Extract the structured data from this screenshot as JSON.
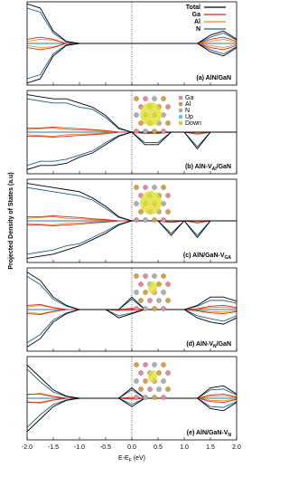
{
  "chart_data": [
    {
      "type": "line",
      "label": [
        "(a) AlN/GaN"
      ],
      "xlim": [
        -2,
        2
      ],
      "ylim": [
        -1,
        1
      ],
      "vline": 0,
      "x": [
        -2,
        -1.75,
        -1.5,
        -1.25,
        -1,
        -0.75,
        -0.5,
        -0.25,
        0,
        0.25,
        0.5,
        0.75,
        1,
        1.25,
        1.5,
        1.75,
        2
      ],
      "series": [
        {
          "name": "Total",
          "color": "#000000",
          "values": [
            0.95,
            0.85,
            0.3,
            0.05,
            0,
            0,
            0,
            0,
            0,
            0,
            0,
            0,
            0,
            0,
            0.2,
            0.3,
            0.1
          ],
          "down": [
            -0.95,
            -0.85,
            -0.3,
            -0.05,
            0,
            0,
            0,
            0,
            0,
            0,
            0,
            0,
            0,
            0,
            -0.2,
            -0.3,
            -0.1
          ]
        },
        {
          "name": "Ga",
          "color": "#d62728",
          "values": [
            0.1,
            0.15,
            0.1,
            0,
            0,
            0,
            0,
            0,
            0,
            0,
            0,
            0,
            0,
            0,
            0.1,
            0.15,
            0.05
          ],
          "down": [
            -0.1,
            -0.15,
            -0.1,
            0,
            0,
            0,
            0,
            0,
            0,
            0,
            0,
            0,
            0,
            0,
            -0.1,
            -0.15,
            -0.05
          ]
        },
        {
          "name": "Al",
          "color": "#f08c1e",
          "values": [
            0.05,
            0.1,
            0.08,
            0,
            0,
            0,
            0,
            0,
            0,
            0,
            0,
            0,
            0,
            0,
            0.05,
            0.1,
            0.02
          ],
          "down": [
            -0.05,
            -0.1,
            -0.08,
            0,
            0,
            0,
            0,
            0,
            0,
            0,
            0,
            0,
            0,
            0,
            -0.05,
            -0.1,
            -0.02
          ]
        },
        {
          "name": "N",
          "color": "#1f5f8b",
          "values": [
            0.85,
            0.75,
            0.25,
            0.03,
            0,
            0,
            0,
            0,
            0,
            0,
            0,
            0,
            0,
            0,
            0.15,
            0.25,
            0.08
          ],
          "down": [
            -0.85,
            -0.75,
            -0.25,
            -0.03,
            0,
            0,
            0,
            0,
            0,
            0,
            0,
            0,
            0,
            0,
            -0.15,
            -0.25,
            -0.08
          ]
        }
      ]
    },
    {
      "type": "line",
      "label": [
        "(b) AlN-V",
        "Al",
        "/GaN"
      ],
      "xlim": [
        -2,
        2
      ],
      "ylim": [
        -1,
        1
      ],
      "vline": 0,
      "inset_legend": [
        "Ga",
        "Al",
        "N",
        "Up",
        "Down"
      ],
      "x": [
        -2,
        -1.75,
        -1.5,
        -1.25,
        -1,
        -0.75,
        -0.5,
        -0.25,
        0,
        0.25,
        0.5,
        0.75,
        1,
        1.25,
        1.5,
        1.75,
        2
      ],
      "series": [
        {
          "color": "#000000",
          "values": [
            0.9,
            0.85,
            0.8,
            0.8,
            0.7,
            0.6,
            0.4,
            0.1,
            0,
            0,
            0,
            0,
            0,
            0,
            0,
            0,
            0
          ],
          "down": [
            -0.9,
            -0.8,
            -0.8,
            -0.75,
            -0.6,
            -0.5,
            -0.3,
            -0.1,
            0,
            -0.3,
            -0.3,
            0,
            0,
            -0.4,
            0,
            0,
            0
          ]
        },
        {
          "color": "#d62728",
          "values": [
            0.1,
            0.1,
            0.12,
            0.1,
            0.08,
            0.06,
            0.04,
            0,
            0,
            0,
            0,
            0,
            0,
            0,
            0,
            0,
            0
          ],
          "down": [
            -0.1,
            -0.1,
            -0.12,
            -0.1,
            -0.08,
            -0.06,
            -0.04,
            0,
            0,
            -0.03,
            -0.03,
            0,
            0,
            -0.05,
            0,
            0,
            0
          ]
        },
        {
          "color": "#f08c1e",
          "values": [
            0.06,
            0.08,
            0.1,
            0.06,
            0.05,
            0.04,
            0.02,
            0,
            0,
            0,
            0,
            0,
            0,
            0,
            0,
            0,
            0
          ],
          "down": [
            -0.06,
            -0.08,
            -0.1,
            -0.06,
            -0.05,
            -0.04,
            -0.02,
            0,
            0,
            -0.02,
            -0.02,
            0,
            0,
            -0.03,
            0,
            0,
            0
          ]
        },
        {
          "color": "#1f5f8b",
          "values": [
            0.8,
            0.75,
            0.7,
            0.7,
            0.6,
            0.55,
            0.35,
            0.08,
            0,
            0,
            0,
            0,
            0,
            0,
            0,
            0,
            0
          ],
          "down": [
            -0.8,
            -0.7,
            -0.7,
            -0.65,
            -0.55,
            -0.45,
            -0.25,
            -0.08,
            0,
            -0.25,
            -0.25,
            0,
            0,
            -0.35,
            0,
            0,
            0
          ]
        }
      ]
    },
    {
      "type": "line",
      "label": [
        "(c) AlN/GaN-V",
        "GA"
      ],
      "xlim": [
        -2,
        2
      ],
      "ylim": [
        -1,
        1
      ],
      "vline": 0,
      "ylabel": "Projected Density of States (a.u)",
      "x": [
        -2,
        -1.75,
        -1.5,
        -1.25,
        -1,
        -0.75,
        -0.5,
        -0.25,
        0,
        0.25,
        0.5,
        0.75,
        1,
        1.25,
        1.5,
        1.75,
        2
      ],
      "series": [
        {
          "color": "#000000",
          "values": [
            0.9,
            0.85,
            0.8,
            0.75,
            0.7,
            0.55,
            0.35,
            0.1,
            0,
            0,
            0,
            0,
            0,
            0,
            0,
            0,
            0
          ],
          "down": [
            -0.9,
            -0.85,
            -0.8,
            -0.7,
            -0.6,
            -0.45,
            -0.3,
            -0.1,
            0,
            0,
            0,
            -0.35,
            0,
            -0.4,
            0,
            0,
            0
          ]
        },
        {
          "color": "#d62728",
          "values": [
            0.1,
            0.1,
            0.12,
            0.1,
            0.08,
            0.05,
            0.03,
            0,
            0,
            0,
            0,
            0,
            0,
            0,
            0,
            0,
            0
          ],
          "down": [
            -0.1,
            -0.1,
            -0.12,
            -0.1,
            -0.08,
            -0.05,
            -0.03,
            0,
            0,
            0,
            0,
            -0.04,
            0,
            -0.05,
            0,
            0,
            0
          ]
        },
        {
          "color": "#f08c1e",
          "values": [
            0.06,
            0.08,
            0.1,
            0.06,
            0.05,
            0.03,
            0.02,
            0,
            0,
            0,
            0,
            0,
            0,
            0,
            0,
            0,
            0
          ],
          "down": [
            -0.06,
            -0.08,
            -0.1,
            -0.06,
            -0.05,
            -0.03,
            -0.02,
            0,
            0,
            0,
            0,
            -0.03,
            0,
            -0.03,
            0,
            0,
            0
          ]
        },
        {
          "color": "#1f5f8b",
          "values": [
            0.8,
            0.75,
            0.7,
            0.65,
            0.6,
            0.5,
            0.3,
            0.08,
            0,
            0,
            0,
            0,
            0,
            0,
            0,
            0,
            0
          ],
          "down": [
            -0.8,
            -0.75,
            -0.7,
            -0.6,
            -0.55,
            -0.4,
            -0.25,
            -0.08,
            0,
            0,
            0,
            -0.3,
            0,
            -0.35,
            0,
            0,
            0
          ]
        }
      ]
    },
    {
      "type": "line",
      "label": [
        "(d) AlN-V",
        "N",
        "/GaN"
      ],
      "xlim": [
        -2,
        2
      ],
      "ylim": [
        -1,
        1
      ],
      "vline": 0,
      "x": [
        -2,
        -1.75,
        -1.5,
        -1.25,
        -1,
        -0.75,
        -0.5,
        -0.25,
        0,
        0.25,
        0.5,
        0.75,
        1,
        1.25,
        1.5,
        1.75,
        2
      ],
      "series": [
        {
          "color": "#000000",
          "values": [
            0.9,
            0.7,
            0.3,
            0.1,
            0,
            0,
            0,
            0,
            0.3,
            0,
            0,
            0,
            0,
            0.1,
            0.3,
            0.3,
            0.2
          ],
          "down": [
            -0.9,
            -0.7,
            -0.3,
            -0.1,
            0,
            0,
            0,
            -0.2,
            -0.1,
            0,
            0,
            0,
            0,
            -0.2,
            -0.3,
            -0.35,
            -0.2
          ]
        },
        {
          "color": "#d62728",
          "values": [
            0.1,
            0.12,
            0.05,
            0,
            0,
            0,
            0,
            0,
            0.03,
            0,
            0,
            0,
            0,
            0.02,
            0.08,
            0.1,
            0.05
          ],
          "down": [
            -0.1,
            -0.12,
            -0.05,
            0,
            0,
            0,
            0,
            -0.02,
            -0.01,
            0,
            0,
            0,
            0,
            -0.03,
            -0.08,
            -0.1,
            -0.05
          ]
        },
        {
          "color": "#f08c1e",
          "values": [
            0.06,
            0.1,
            0.04,
            0,
            0,
            0,
            0,
            0,
            0.02,
            0,
            0,
            0,
            0,
            0.01,
            0.05,
            0.06,
            0.03
          ],
          "down": [
            -0.06,
            -0.1,
            -0.04,
            0,
            0,
            0,
            0,
            -0.01,
            -0.01,
            0,
            0,
            0,
            0,
            -0.02,
            -0.05,
            -0.06,
            -0.03
          ]
        },
        {
          "color": "#1f5f8b",
          "values": [
            0.8,
            0.6,
            0.25,
            0.08,
            0,
            0,
            0,
            0,
            0.25,
            0,
            0,
            0,
            0,
            0.08,
            0.22,
            0.22,
            0.15
          ],
          "down": [
            -0.8,
            -0.6,
            -0.25,
            -0.08,
            0,
            0,
            0,
            -0.15,
            -0.08,
            0,
            0,
            0,
            0,
            -0.15,
            -0.22,
            -0.28,
            -0.15
          ]
        }
      ]
    },
    {
      "type": "line",
      "label": [
        "(e) AlN/GaN-V",
        "N"
      ],
      "xlim": [
        -2,
        2
      ],
      "ylim": [
        -1,
        1
      ],
      "vline": 0,
      "xlabel": [
        "E-E",
        "F",
        " (eV)"
      ],
      "xticks": [
        {
          "value": -2,
          "label": "-2.0"
        },
        -1.5,
        {
          "value": -1,
          "label": "-1.0"
        },
        -0.5,
        {
          "value": 0,
          "label": "0.0"
        },
        0.5,
        {
          "value": 1,
          "label": "1.0"
        },
        1.5,
        {
          "value": 2,
          "label": "2.0"
        }
      ],
      "x": [
        -2,
        -1.75,
        -1.5,
        -1.25,
        -1,
        -0.75,
        -0.5,
        -0.25,
        0,
        0.25,
        0.5,
        0.75,
        1,
        1.25,
        1.5,
        1.75,
        2
      ],
      "series": [
        {
          "color": "#000000",
          "values": [
            0.8,
            0.5,
            0.2,
            0.05,
            0,
            0,
            0,
            0,
            0.25,
            0,
            0,
            0,
            0,
            0,
            0.25,
            0.3,
            0.1
          ],
          "down": [
            -0.8,
            -0.5,
            -0.2,
            -0.05,
            0,
            0,
            0,
            0,
            -0.2,
            0,
            0,
            0,
            0,
            0,
            -0.25,
            -0.3,
            -0.1
          ]
        },
        {
          "color": "#d62728",
          "values": [
            0.1,
            0.1,
            0.04,
            0,
            0,
            0,
            0,
            0,
            0.02,
            0,
            0,
            0,
            0,
            0,
            0.08,
            0.1,
            0.03
          ],
          "down": [
            -0.1,
            -0.1,
            -0.04,
            0,
            0,
            0,
            0,
            0,
            -0.02,
            0,
            0,
            0,
            0,
            0,
            -0.08,
            -0.1,
            -0.03
          ]
        },
        {
          "color": "#f08c1e",
          "values": [
            0.08,
            0.12,
            0.05,
            0,
            0,
            0,
            0,
            0,
            0.01,
            0,
            0,
            0,
            0,
            0,
            0.05,
            0.06,
            0.02
          ],
          "down": [
            -0.08,
            -0.12,
            -0.05,
            0,
            0,
            0,
            0,
            0,
            -0.01,
            0,
            0,
            0,
            0,
            0,
            -0.05,
            -0.06,
            -0.02
          ]
        },
        {
          "color": "#1f5f8b",
          "values": [
            0.7,
            0.4,
            0.15,
            0.04,
            0,
            0,
            0,
            0,
            0.2,
            0,
            0,
            0,
            0,
            0,
            0.2,
            0.22,
            0.08
          ],
          "down": [
            -0.7,
            -0.4,
            -0.15,
            -0.04,
            0,
            0,
            0,
            0,
            -0.15,
            0,
            0,
            0,
            0,
            0,
            -0.2,
            -0.22,
            -0.08
          ]
        }
      ]
    }
  ]
}
